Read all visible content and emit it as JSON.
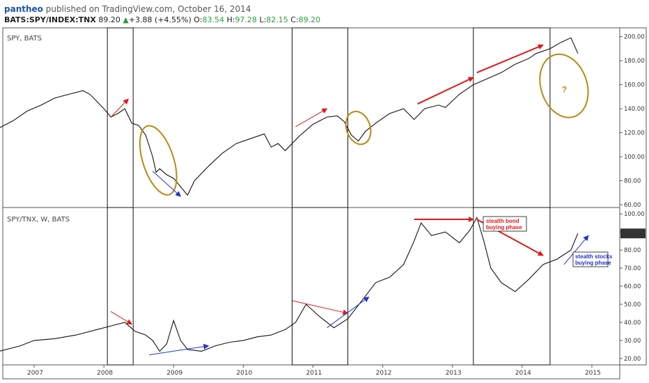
{
  "header": {
    "author": "pantheo",
    "published": " published on TradingView.com, October 16, 2014",
    "symbol": "BATS:SPY/INDEX:TNX",
    "last": "89.20",
    "change": "+3.88 (+4.55%)",
    "open_label": "O:",
    "open": "83.54",
    "high_label": "H:",
    "high": "97.28",
    "low_label": "L:",
    "low": "82.15",
    "close_label": "C:",
    "close": "89.20"
  },
  "colors": {
    "line": "#111111",
    "red": "#e01818",
    "blue": "#2233cc",
    "olive": "#b98a12",
    "price_tag": "#333333"
  },
  "chart_data": [
    {
      "type": "line",
      "title": "SPY, BATS",
      "ylim": [
        60,
        205
      ],
      "y_ticks": [
        "200.00",
        "180.00",
        "160.00",
        "140.00",
        "120.00",
        "100.00",
        "80.00",
        "60.00"
      ],
      "x_ticks": [
        "2007",
        "2008",
        "2009",
        "2010",
        "2011",
        "2012",
        "2013",
        "2014",
        "2015"
      ],
      "x": [
        2006.5,
        2006.7,
        2006.9,
        2007.1,
        2007.3,
        2007.5,
        2007.7,
        2007.8,
        2008.0,
        2008.1,
        2008.2,
        2008.3,
        2008.4,
        2008.5,
        2008.6,
        2008.7,
        2008.75,
        2008.8,
        2008.9,
        2009.0,
        2009.1,
        2009.2,
        2009.3,
        2009.5,
        2009.7,
        2009.9,
        2010.1,
        2010.3,
        2010.4,
        2010.5,
        2010.6,
        2010.8,
        2011.0,
        2011.2,
        2011.35,
        2011.45,
        2011.55,
        2011.65,
        2011.75,
        2011.9,
        2012.1,
        2012.3,
        2012.45,
        2012.6,
        2012.8,
        2012.9,
        2013.1,
        2013.3,
        2013.5,
        2013.7,
        2013.9,
        2014.1,
        2014.2,
        2014.4,
        2014.55,
        2014.7,
        2014.8
      ],
      "values": [
        124,
        130,
        138,
        143,
        149,
        152,
        155,
        152,
        140,
        133,
        136,
        140,
        128,
        126,
        118,
        100,
        87,
        90,
        85,
        82,
        75,
        68,
        80,
        92,
        103,
        111,
        115,
        119,
        108,
        111,
        105,
        117,
        127,
        133,
        134,
        129,
        118,
        113,
        121,
        128,
        136,
        140,
        131,
        140,
        143,
        141,
        152,
        160,
        165,
        170,
        177,
        182,
        186,
        190,
        195,
        199,
        186
      ],
      "annotations": {
        "boxes": [
          [
            2008.05,
            2008.42
          ],
          [
            2010.7,
            2011.5
          ],
          [
            2013.3,
            2014.4
          ]
        ],
        "red_arrows": [
          [
            2008.1,
            133,
            2008.35,
            148
          ],
          [
            2010.75,
            125,
            2011.2,
            140
          ],
          [
            2012.5,
            144,
            2013.3,
            166
          ],
          [
            2013.35,
            170,
            2014.3,
            193
          ]
        ],
        "blue_arrows": [
          [
            2008.7,
            88,
            2009.1,
            67
          ]
        ],
        "ellipses": [
          [
            2008.78,
            97,
            0.22,
            30
          ],
          [
            2011.65,
            124,
            0.17,
            14
          ],
          [
            2014.6,
            159,
            0.33,
            27
          ]
        ],
        "question_label": "?"
      }
    },
    {
      "type": "line",
      "title": "SPY/TNX, W, BATS",
      "ylim": [
        18,
        102
      ],
      "y_ticks": [
        "100.00",
        "90.00",
        "80.00",
        "70.00",
        "60.00",
        "50.00",
        "40.00",
        "30.00",
        "20.00"
      ],
      "last_value_tag": "89.20",
      "x": [
        2006.5,
        2006.8,
        2007.0,
        2007.3,
        2007.6,
        2007.9,
        2008.1,
        2008.3,
        2008.45,
        2008.6,
        2008.7,
        2008.8,
        2008.9,
        2009.0,
        2009.1,
        2009.2,
        2009.4,
        2009.6,
        2009.8,
        2010.0,
        2010.2,
        2010.4,
        2010.6,
        2010.75,
        2010.9,
        2011.1,
        2011.3,
        2011.5,
        2011.7,
        2011.9,
        2012.1,
        2012.3,
        2012.45,
        2012.55,
        2012.7,
        2012.9,
        2013.1,
        2013.25,
        2013.35,
        2013.45,
        2013.55,
        2013.7,
        2013.9,
        2014.1,
        2014.3,
        2014.5,
        2014.7,
        2014.8
      ],
      "values": [
        24,
        27,
        30,
        31,
        33,
        36,
        38,
        40,
        35,
        33,
        30,
        24,
        28,
        41,
        30,
        25,
        24,
        27,
        29,
        30,
        32,
        33,
        36,
        40,
        50,
        43,
        37,
        42,
        52,
        62,
        65,
        72,
        85,
        95,
        88,
        90,
        84,
        91,
        98,
        85,
        70,
        62,
        57,
        64,
        72,
        75,
        80,
        89.2
      ],
      "annotations": {
        "boxes": [
          [
            2008.05,
            2008.42
          ],
          [
            2010.7,
            2011.5
          ],
          [
            2013.3,
            2014.4
          ]
        ],
        "red_arrows": [
          [
            2008.1,
            46,
            2008.4,
            39
          ],
          [
            2010.7,
            52,
            2011.5,
            45
          ],
          [
            2012.45,
            97,
            2013.3,
            97
          ],
          [
            2013.35,
            97,
            2014.3,
            77
          ]
        ],
        "blue_arrows": [
          [
            2008.65,
            22,
            2009.5,
            27
          ],
          [
            2011.2,
            37,
            2011.8,
            54
          ],
          [
            2014.6,
            72,
            2014.95,
            88
          ]
        ],
        "note_red_1": "stealth bond",
        "note_red_2": "buying phase",
        "note_blue_1": "stealth stocks",
        "note_blue_2": "buying phase"
      }
    }
  ]
}
